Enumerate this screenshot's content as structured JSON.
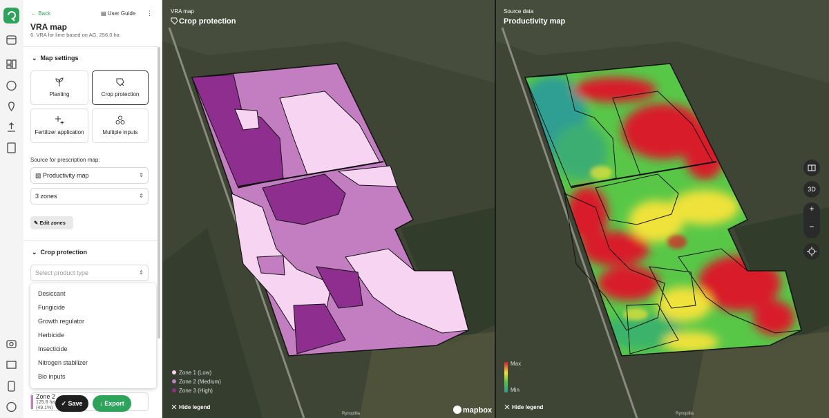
{
  "sidebar": {
    "back": "Back",
    "user_guide": "User Guide",
    "title": "VRA map",
    "subtitle": "6. VRA for lime based on AG, 256.0 ha",
    "map_settings": "Map settings",
    "tiles": [
      "Planting",
      "Crop protection",
      "Fertilizer application",
      "Multiple inputs"
    ],
    "source_label": "Source for prescription map:",
    "source_select": "Productivity map",
    "zones_select": "3 zones",
    "edit_zones": "Edit zones",
    "crop_protection": "Crop protection",
    "product_placeholder": "Select product type",
    "product_options": [
      "Desiccant",
      "Fungicide",
      "Growth regulator",
      "Herbicide",
      "Insecticide",
      "Nitrogen stabilizer",
      "Bio inputs"
    ],
    "zone_card": {
      "name": "Zone 2",
      "area": "125.8 ha",
      "share": "(49.1%)"
    },
    "save": "Save",
    "export": "Export"
  },
  "left_map": {
    "caption": "VRA map",
    "title": "Crop protection",
    "legend": [
      "Zone 1 (Low)",
      "Zone 2 (Medium)",
      "Zone 3 (High)"
    ],
    "hide_legend": "Hide legend",
    "logo": "mapbox",
    "place": "Rynopillia"
  },
  "right_map": {
    "caption": "Source data",
    "title": "Productivity map",
    "legend": [
      "Max",
      "Min"
    ],
    "hide_legend": "Hide legend",
    "place": "Rynopillia"
  },
  "map_controls": [
    "3D",
    "+",
    "−"
  ]
}
